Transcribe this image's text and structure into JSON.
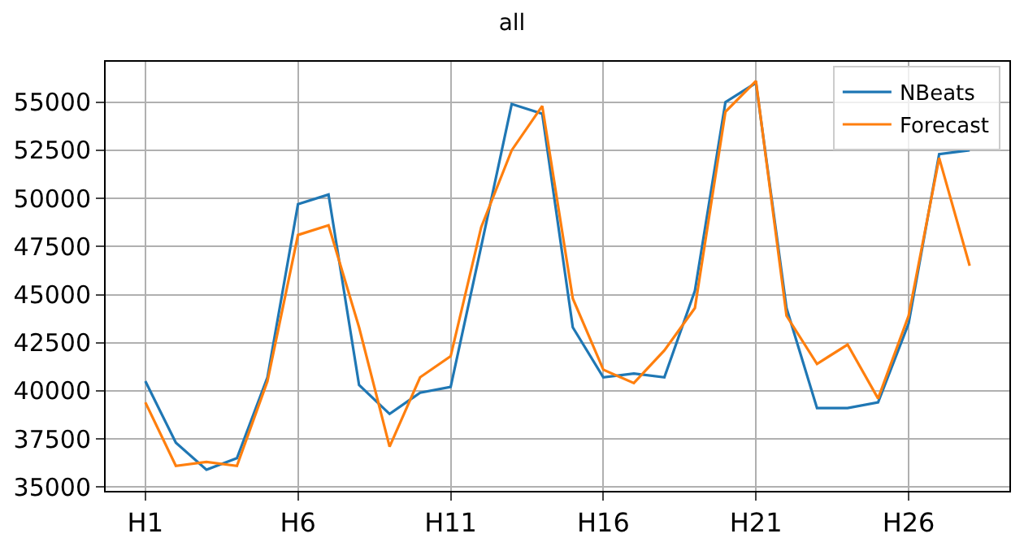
{
  "chart_data": {
    "type": "line",
    "title": "all",
    "categories": [
      "H1",
      null,
      null,
      null,
      null,
      "H6",
      null,
      null,
      null,
      null,
      "H11",
      null,
      null,
      null,
      null,
      "H16",
      null,
      null,
      null,
      null,
      "H21",
      null,
      null,
      null,
      null,
      "H26",
      null,
      null
    ],
    "series": [
      {
        "name": "NBeats",
        "color": "#1f77b4",
        "values": [
          40500,
          37300,
          35900,
          36500,
          40700,
          49700,
          50200,
          40300,
          38800,
          39900,
          40200,
          47500,
          54900,
          54400,
          43300,
          40700,
          40900,
          40700,
          45200,
          55000,
          56000,
          44300,
          39100,
          39100,
          39400,
          43500,
          52300,
          52500
        ]
      },
      {
        "name": "Forecast",
        "color": "#ff7f0e",
        "values": [
          39400,
          36100,
          36300,
          36100,
          40500,
          48100,
          48600,
          43300,
          37100,
          40700,
          41800,
          48500,
          52500,
          54800,
          44800,
          41100,
          40400,
          42100,
          44300,
          54500,
          56100,
          43900,
          41400,
          42400,
          39600,
          43900,
          52100,
          46500
        ]
      }
    ],
    "ylim": [
      34800,
      57100
    ],
    "yticks": [
      35000,
      37500,
      40000,
      42500,
      45000,
      47500,
      50000,
      52500,
      55000
    ],
    "grid": true,
    "legend": "top right"
  }
}
